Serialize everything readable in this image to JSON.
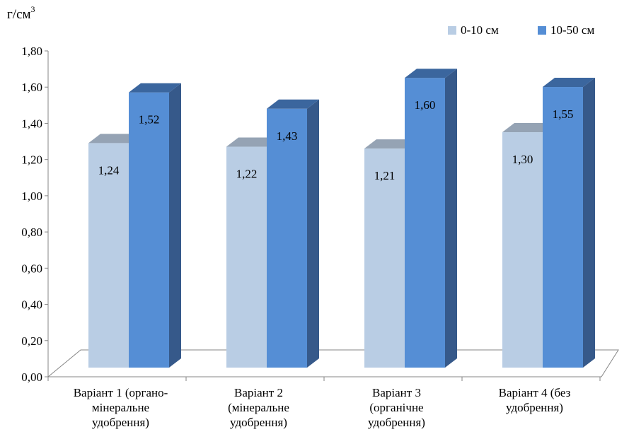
{
  "chart_data": {
    "type": "bar",
    "title": "",
    "ylabel": "г/см",
    "ylabel_superscript": "3",
    "xlabel": "",
    "ylim": [
      0,
      1.8
    ],
    "yticks": [
      "0,00",
      "0,20",
      "0,40",
      "0,60",
      "0,80",
      "1,00",
      "1,20",
      "1,40",
      "1,60",
      "1,80"
    ],
    "categories": [
      [
        "Варіант 1 (органо-",
        "мінеральне",
        "удобрення)"
      ],
      [
        "Варіант 2",
        "(мінеральне",
        "удобрення)"
      ],
      [
        "Варіант 3",
        "(органічне",
        "удобрення)"
      ],
      [
        "Варіант 4 (без",
        "удобрення)"
      ]
    ],
    "series": [
      {
        "name": "0-10 см",
        "values": [
          1.24,
          1.22,
          1.21,
          1.3
        ],
        "labels": [
          "1,24",
          "1,22",
          "1,21",
          "1,30"
        ]
      },
      {
        "name": "10-50 см",
        "values": [
          1.52,
          1.43,
          1.6,
          1.55
        ],
        "labels": [
          "1,52",
          "1,43",
          "1,60",
          "1,55"
        ]
      }
    ],
    "legend_position": "top-right",
    "grid": false,
    "colors": {
      "series0_front": "#b9cde4",
      "series0_top": "#95a3b4",
      "series1_front": "#558ed5",
      "series1_top": "#3b669e",
      "series1_side": "#36598a",
      "axis": "#868686"
    }
  }
}
